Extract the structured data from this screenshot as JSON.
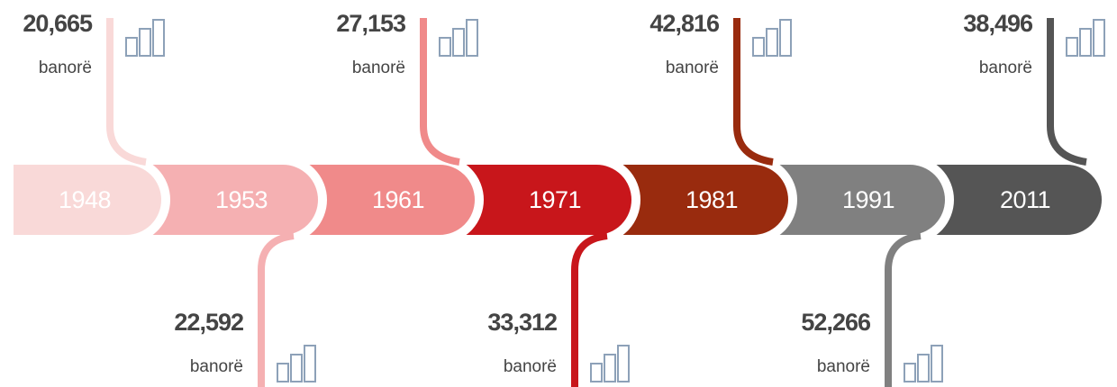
{
  "timeline": [
    {
      "year": "1948",
      "population": "20,665",
      "unit": "banorë",
      "color": "#f9d9d8"
    },
    {
      "year": "1953",
      "population": "22,592",
      "unit": "banorë",
      "color": "#f5b0b2"
    },
    {
      "year": "1961",
      "population": "27,153",
      "unit": "banorë",
      "color": "#f08a8a"
    },
    {
      "year": "1971",
      "population": "33,312",
      "unit": "banorë",
      "color": "#c8161b"
    },
    {
      "year": "1981",
      "population": "42,816",
      "unit": "banorë",
      "color": "#992b0e"
    },
    {
      "year": "1991",
      "population": "52,266",
      "unit": "banorë",
      "color": "#808080"
    },
    {
      "year": "2011",
      "population": "38,496",
      "unit": "banorë",
      "color": "#555555"
    }
  ]
}
